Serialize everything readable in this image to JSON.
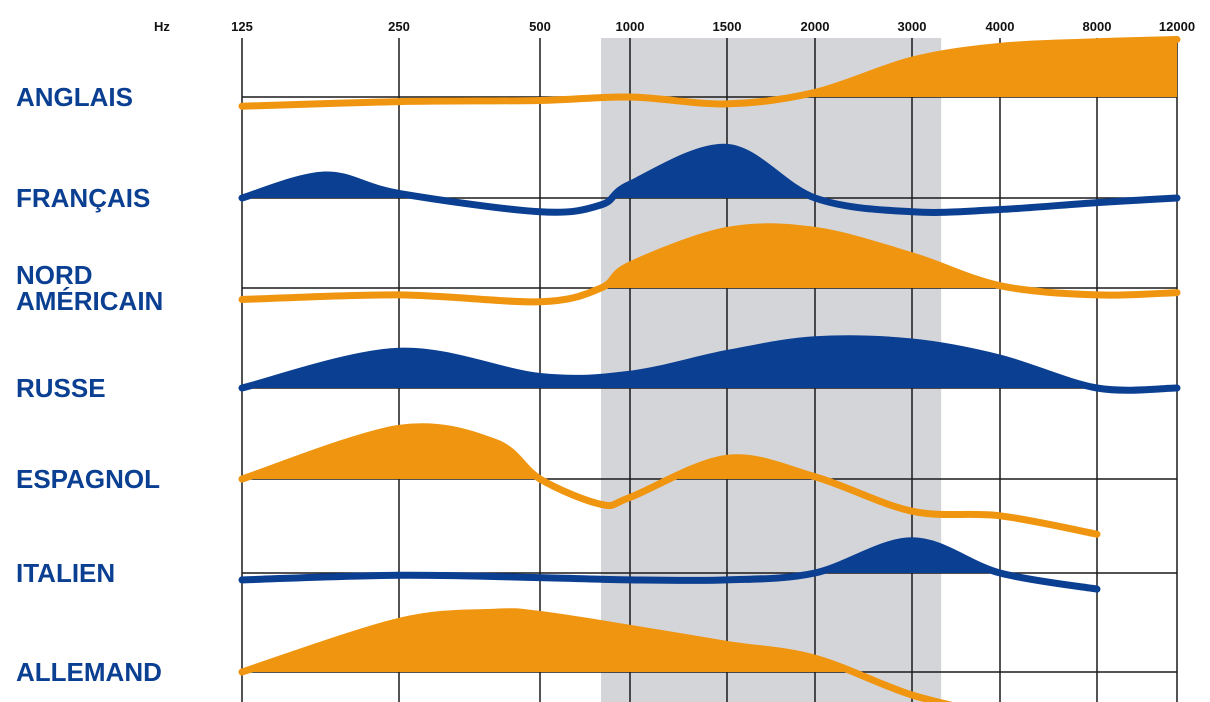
{
  "chart_data": {
    "type": "area",
    "title": "",
    "x_unit": "Hz",
    "x_ticks": [
      125,
      250,
      500,
      1000,
      1500,
      2000,
      3000,
      4000,
      8000,
      12000
    ],
    "x_scale": "categorical",
    "highlight_band": {
      "from_hz": 800,
      "to_hz": 3300,
      "color": "#d4d5d9"
    },
    "grid": true,
    "colors": {
      "orange": "#ef9510",
      "blue": "#0b3f92",
      "grid": "#1a1a1a"
    },
    "series": [
      {
        "name": "ANGLAIS",
        "label_lines": [
          "ANGLAIS"
        ],
        "color": "orange",
        "x": [
          125,
          250,
          500,
          1000,
          1500,
          2000,
          3000,
          4000,
          8000,
          12000
        ],
        "level": [
          -0.4,
          -0.2,
          -0.15,
          0.0,
          -0.3,
          0.2,
          1.6,
          2.2,
          2.4,
          2.5
        ]
      },
      {
        "name": "FRANÇAIS",
        "label_lines": [
          "FRANÇAIS"
        ],
        "color": "blue",
        "x": [
          125,
          180,
          250,
          500,
          800,
          1000,
          1500,
          2000,
          3000,
          4000,
          8000,
          12000
        ],
        "level": [
          0.0,
          1.0,
          0.2,
          -0.6,
          -0.3,
          0.6,
          2.2,
          0.0,
          -0.6,
          -0.5,
          -0.2,
          0.0
        ]
      },
      {
        "name": "NORD AMÉRICAIN",
        "label_lines": [
          "NORD",
          "AMÉRICAIN"
        ],
        "color": "orange",
        "x": [
          125,
          250,
          500,
          800,
          1000,
          1500,
          2000,
          3000,
          4000,
          8000,
          12000
        ],
        "level": [
          -0.5,
          -0.3,
          -0.6,
          0.0,
          1.0,
          2.5,
          2.5,
          1.4,
          0.1,
          -0.3,
          -0.2
        ]
      },
      {
        "name": "RUSSE",
        "label_lines": [
          "RUSSE"
        ],
        "color": "blue",
        "x": [
          125,
          250,
          500,
          1000,
          1500,
          2000,
          3000,
          4000,
          8000,
          12000
        ],
        "level": [
          0.0,
          1.6,
          0.5,
          0.6,
          1.5,
          2.1,
          2.0,
          1.3,
          0.0,
          0.0
        ]
      },
      {
        "name": "ESPAGNOL",
        "label_lines": [
          "ESPAGNOL"
        ],
        "color": "orange",
        "x": [
          125,
          250,
          400,
          500,
          800,
          1000,
          1500,
          2000,
          3000,
          4000,
          8000
        ],
        "level": [
          0.0,
          2.2,
          1.6,
          0.0,
          -1.1,
          -0.8,
          0.9,
          0.1,
          -1.4,
          -1.6,
          -2.4
        ]
      },
      {
        "name": "ITALIEN",
        "label_lines": [
          "ITALIEN"
        ],
        "color": "blue",
        "x": [
          125,
          250,
          500,
          1000,
          1500,
          2000,
          3000,
          4000,
          8000
        ],
        "level": [
          -0.3,
          -0.1,
          -0.2,
          -0.3,
          -0.3,
          0.0,
          1.4,
          0.0,
          -0.7
        ]
      },
      {
        "name": "ALLEMAND",
        "label_lines": [
          "ALLEMAND"
        ],
        "color": "orange",
        "x": [
          125,
          250,
          400,
          500,
          1000,
          1500,
          2000,
          3000,
          4000
        ],
        "level": [
          0.0,
          2.2,
          2.6,
          2.5,
          1.9,
          1.2,
          0.6,
          -1.0,
          -1.9
        ]
      }
    ]
  }
}
